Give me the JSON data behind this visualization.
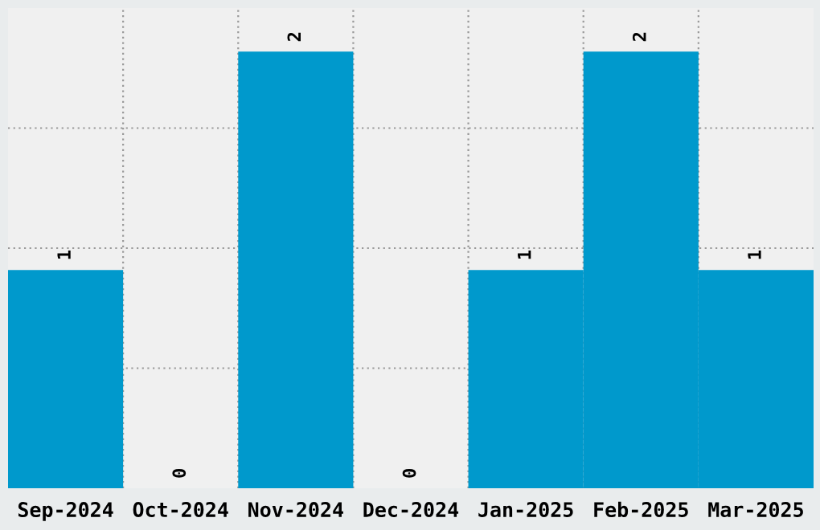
{
  "chart_data": {
    "type": "bar",
    "categories": [
      "Sep-2024",
      "Oct-2024",
      "Nov-2024",
      "Dec-2024",
      "Jan-2025",
      "Feb-2025",
      "Mar-2025"
    ],
    "values": [
      1,
      0,
      2,
      0,
      1,
      2,
      1
    ],
    "color": "#0099cc",
    "data_labels": true,
    "ylim": [
      0,
      2.2
    ],
    "yticks": [
      {
        "value": 0.55,
        "label": null
      },
      {
        "value": 1.1,
        "label": null
      },
      {
        "value": 1.65,
        "label": null
      }
    ],
    "grid": true,
    "tick_labels": "x"
  }
}
